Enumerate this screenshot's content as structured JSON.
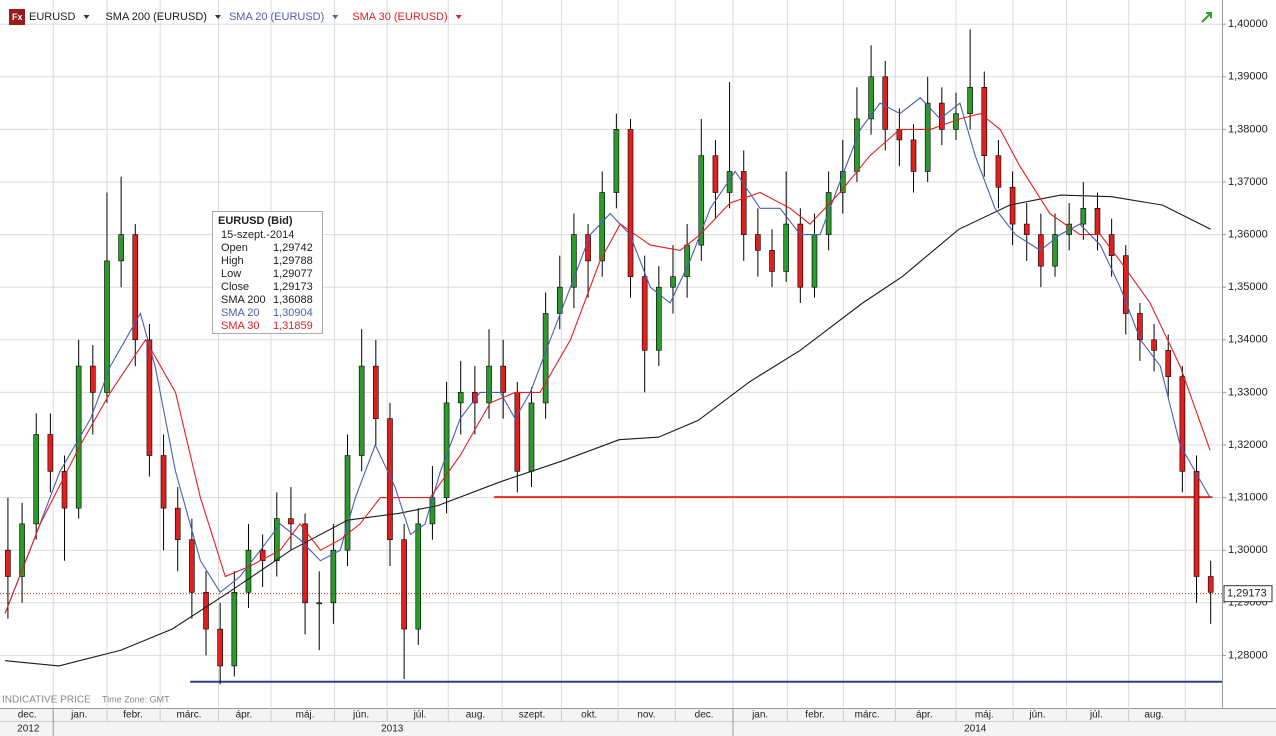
{
  "chart_data": {
    "type": "candlestick",
    "instrument": "EURUSD",
    "xlim": [
      0.06,
      21.65
    ],
    "ylim": [
      1.27,
      1.4046
    ],
    "yticks": [
      {
        "value": 1.28,
        "label": "1,28000"
      },
      {
        "value": 1.29,
        "label": "1,29000"
      },
      {
        "value": 1.3,
        "label": "1,30000"
      },
      {
        "value": 1.31,
        "label": "1,31000"
      },
      {
        "value": 1.32,
        "label": "1,32000"
      },
      {
        "value": 1.33,
        "label": "1,33000"
      },
      {
        "value": 1.34,
        "label": "1,34000"
      },
      {
        "value": 1.35,
        "label": "1,35000"
      },
      {
        "value": 1.36,
        "label": "1,36000"
      },
      {
        "value": 1.37,
        "label": "1,37000"
      },
      {
        "value": 1.38,
        "label": "1,38000"
      },
      {
        "value": 1.39,
        "label": "1,39000"
      },
      {
        "value": 1.4,
        "label": "1,40000"
      }
    ],
    "xticks": [
      1.0,
      1.95,
      2.89,
      3.92,
      4.85,
      5.97,
      6.9,
      7.98,
      8.93,
      9.98,
      10.98,
      11.99,
      13.01,
      13.97,
      14.96,
      15.88,
      16.95,
      17.96,
      18.9,
      20.0,
      21.0
    ],
    "grid": true,
    "month_labels": [
      {
        "value": 0.54,
        "label": "dec."
      },
      {
        "value": 1.46,
        "label": "jan."
      },
      {
        "value": 2.41,
        "label": "febr."
      },
      {
        "value": 3.4,
        "label": "márc."
      },
      {
        "value": 4.37,
        "label": "ápr."
      },
      {
        "value": 5.45,
        "label": "máj."
      },
      {
        "value": 6.44,
        "label": "jún."
      },
      {
        "value": 7.48,
        "label": "júl."
      },
      {
        "value": 8.46,
        "label": "aug."
      },
      {
        "value": 9.46,
        "label": "szept."
      },
      {
        "value": 10.47,
        "label": "okt."
      },
      {
        "value": 11.48,
        "label": "nov."
      },
      {
        "value": 12.5,
        "label": "dec."
      },
      {
        "value": 13.49,
        "label": "jan."
      },
      {
        "value": 14.46,
        "label": "febr."
      },
      {
        "value": 15.38,
        "label": "márc."
      },
      {
        "value": 16.39,
        "label": "ápr."
      },
      {
        "value": 17.45,
        "label": "máj."
      },
      {
        "value": 18.39,
        "label": "jún."
      },
      {
        "value": 19.43,
        "label": "júl."
      },
      {
        "value": 20.45,
        "label": "aug."
      }
    ],
    "year_labels": [
      {
        "value": 0.56,
        "label": "2012"
      },
      {
        "value": 6.99,
        "label": "2013"
      },
      {
        "value": 17.29,
        "label": "2014"
      }
    ],
    "year_breaks": [
      1.0,
      13.01
    ],
    "up_color": "#2c9a2c",
    "down_color": "#e02020",
    "x": [
      0.2,
      0.45,
      0.7,
      0.95,
      1.2,
      1.45,
      1.7,
      1.95,
      2.2,
      2.45,
      2.7,
      2.95,
      3.2,
      3.45,
      3.7,
      3.95,
      4.2,
      4.45,
      4.7,
      4.95,
      5.2,
      5.45,
      5.7,
      5.95,
      6.2,
      6.45,
      6.7,
      6.95,
      7.2,
      7.45,
      7.7,
      7.95,
      8.2,
      8.45,
      8.7,
      8.95,
      9.2,
      9.45,
      9.7,
      9.95,
      10.2,
      10.45,
      10.7,
      10.95,
      11.2,
      11.45,
      11.7,
      11.95,
      12.2,
      12.45,
      12.7,
      12.95,
      13.2,
      13.45,
      13.7,
      13.95,
      14.2,
      14.45,
      14.7,
      14.95,
      15.2,
      15.45,
      15.7,
      15.95,
      16.2,
      16.45,
      16.7,
      16.95,
      17.2,
      17.45,
      17.7,
      17.95,
      18.2,
      18.45,
      18.7,
      18.95,
      19.2,
      19.45,
      19.7,
      19.95,
      20.2,
      20.45,
      20.7,
      20.95,
      21.2,
      21.45
    ],
    "open": [
      1.3,
      1.295,
      1.305,
      1.322,
      1.315,
      1.308,
      1.335,
      1.33,
      1.355,
      1.36,
      1.34,
      1.318,
      1.308,
      1.302,
      1.292,
      1.285,
      1.278,
      1.292,
      1.3,
      1.298,
      1.306,
      1.305,
      1.29,
      1.29,
      1.3,
      1.318,
      1.335,
      1.325,
      1.302,
      1.285,
      1.305,
      1.31,
      1.328,
      1.33,
      1.328,
      1.335,
      1.33,
      1.315,
      1.328,
      1.345,
      1.35,
      1.36,
      1.355,
      1.368,
      1.38,
      1.352,
      1.338,
      1.35,
      1.352,
      1.358,
      1.375,
      1.368,
      1.372,
      1.36,
      1.357,
      1.353,
      1.362,
      1.35,
      1.36,
      1.368,
      1.372,
      1.382,
      1.39,
      1.38,
      1.378,
      1.372,
      1.385,
      1.38,
      1.383,
      1.388,
      1.375,
      1.369,
      1.362,
      1.36,
      1.354,
      1.36,
      1.362,
      1.365,
      1.36,
      1.356,
      1.345,
      1.34,
      1.338,
      1.333,
      1.315,
      1.295
    ],
    "high": [
      1.31,
      1.309,
      1.326,
      1.326,
      1.318,
      1.34,
      1.339,
      1.368,
      1.371,
      1.362,
      1.343,
      1.322,
      1.312,
      1.306,
      1.296,
      1.29,
      1.296,
      1.305,
      1.303,
      1.311,
      1.312,
      1.307,
      1.296,
      1.305,
      1.322,
      1.342,
      1.34,
      1.328,
      1.305,
      1.308,
      1.316,
      1.332,
      1.336,
      1.335,
      1.342,
      1.34,
      1.332,
      1.331,
      1.349,
      1.356,
      1.364,
      1.362,
      1.372,
      1.383,
      1.382,
      1.356,
      1.354,
      1.358,
      1.362,
      1.382,
      1.378,
      1.389,
      1.376,
      1.365,
      1.361,
      1.372,
      1.365,
      1.364,
      1.372,
      1.378,
      1.388,
      1.396,
      1.393,
      1.384,
      1.381,
      1.39,
      1.388,
      1.387,
      1.399,
      1.391,
      1.378,
      1.372,
      1.366,
      1.364,
      1.364,
      1.366,
      1.37,
      1.368,
      1.363,
      1.358,
      1.347,
      1.343,
      1.341,
      1.335,
      1.318,
      1.298
    ],
    "low": [
      1.287,
      1.29,
      1.302,
      1.311,
      1.298,
      1.306,
      1.322,
      1.328,
      1.35,
      1.335,
      1.314,
      1.3,
      1.296,
      1.287,
      1.28,
      1.2745,
      1.276,
      1.289,
      1.293,
      1.295,
      1.3,
      1.284,
      1.281,
      1.286,
      1.297,
      1.315,
      1.32,
      1.297,
      1.2755,
      1.282,
      1.302,
      1.307,
      1.322,
      1.322,
      1.325,
      1.325,
      1.311,
      1.312,
      1.325,
      1.342,
      1.346,
      1.348,
      1.352,
      1.365,
      1.348,
      1.33,
      1.335,
      1.345,
      1.348,
      1.355,
      1.363,
      1.365,
      1.355,
      1.352,
      1.35,
      1.351,
      1.347,
      1.348,
      1.357,
      1.364,
      1.37,
      1.379,
      1.376,
      1.373,
      1.368,
      1.37,
      1.377,
      1.378,
      1.38,
      1.371,
      1.365,
      1.358,
      1.355,
      1.35,
      1.352,
      1.357,
      1.359,
      1.357,
      1.352,
      1.341,
      1.336,
      1.334,
      1.329,
      1.311,
      1.29,
      1.286
    ],
    "close": [
      1.295,
      1.305,
      1.322,
      1.315,
      1.308,
      1.335,
      1.33,
      1.355,
      1.36,
      1.34,
      1.318,
      1.308,
      1.302,
      1.292,
      1.285,
      1.278,
      1.292,
      1.3,
      1.298,
      1.306,
      1.305,
      1.29,
      1.29,
      1.3,
      1.318,
      1.335,
      1.325,
      1.302,
      1.285,
      1.305,
      1.31,
      1.328,
      1.33,
      1.328,
      1.335,
      1.33,
      1.315,
      1.328,
      1.345,
      1.35,
      1.36,
      1.355,
      1.368,
      1.38,
      1.352,
      1.338,
      1.35,
      1.352,
      1.358,
      1.375,
      1.368,
      1.372,
      1.36,
      1.357,
      1.353,
      1.362,
      1.35,
      1.36,
      1.368,
      1.372,
      1.382,
      1.39,
      1.38,
      1.378,
      1.372,
      1.385,
      1.38,
      1.383,
      1.388,
      1.375,
      1.369,
      1.362,
      1.36,
      1.354,
      1.36,
      1.362,
      1.365,
      1.36,
      1.356,
      1.345,
      1.34,
      1.338,
      1.333,
      1.315,
      1.295,
      1.292
    ],
    "series": [
      {
        "name": "SMA 200 (EURUSD)",
        "color": "#1a1a1a",
        "x": [
          0.15,
          1.1,
          2.2,
          3.1,
          4.1,
          5.2,
          6.2,
          7.1,
          7.8,
          8.9,
          10.0,
          11.0,
          11.7,
          12.4,
          13.3,
          14.2,
          15.3,
          16.0,
          17.0,
          17.9,
          18.8,
          19.7,
          20.6,
          21.45
        ],
        "values": [
          1.279,
          1.278,
          1.281,
          1.285,
          1.292,
          1.3,
          1.3057,
          1.307,
          1.3085,
          1.313,
          1.317,
          1.321,
          1.3215,
          1.3247,
          1.332,
          1.338,
          1.347,
          1.352,
          1.361,
          1.3656,
          1.3675,
          1.3672,
          1.3656,
          1.361
        ]
      },
      {
        "name": "SMA 20 (EURUSD)",
        "color": "#4a5fb0",
        "x": [
          0.15,
          0.59,
          1.12,
          1.66,
          2.01,
          2.54,
          2.8,
          3.16,
          3.6,
          3.95,
          4.3,
          4.66,
          5.01,
          5.36,
          5.72,
          6.07,
          6.34,
          6.69,
          7.04,
          7.31,
          7.57,
          7.84,
          8.19,
          8.54,
          8.9,
          9.16,
          9.43,
          9.78,
          10.14,
          10.49,
          10.84,
          11.19,
          11.55,
          11.9,
          12.25,
          12.61,
          13.05,
          13.49,
          13.84,
          14.2,
          14.55,
          14.9,
          15.26,
          15.61,
          15.96,
          16.32,
          16.67,
          17.02,
          17.29,
          17.64,
          18.0,
          18.44,
          18.79,
          19.14,
          19.5,
          19.85,
          20.21,
          20.56,
          20.91,
          21.44
        ],
        "values": [
          1.288,
          1.3,
          1.315,
          1.325,
          1.335,
          1.345,
          1.335,
          1.315,
          1.298,
          1.292,
          1.295,
          1.3,
          1.305,
          1.302,
          1.298,
          1.3,
          1.31,
          1.32,
          1.312,
          1.303,
          1.305,
          1.315,
          1.325,
          1.33,
          1.33,
          1.325,
          1.33,
          1.34,
          1.35,
          1.36,
          1.364,
          1.36,
          1.35,
          1.347,
          1.355,
          1.365,
          1.372,
          1.365,
          1.365,
          1.36,
          1.36,
          1.37,
          1.38,
          1.385,
          1.383,
          1.386,
          1.382,
          1.385,
          1.375,
          1.365,
          1.36,
          1.357,
          1.36,
          1.362,
          1.358,
          1.35,
          1.34,
          1.335,
          1.32,
          1.31
        ]
      },
      {
        "name": "SMA 30 (EURUSD)",
        "color": "#e02020",
        "x": [
          0.15,
          0.77,
          1.48,
          2.01,
          2.63,
          3.16,
          3.6,
          4.04,
          4.48,
          5.01,
          5.36,
          5.72,
          6.07,
          6.42,
          6.78,
          7.13,
          7.66,
          8.19,
          8.72,
          9.16,
          9.6,
          10.14,
          10.66,
          11.02,
          11.55,
          12.08,
          12.43,
          12.96,
          13.49,
          14.02,
          14.37,
          14.9,
          15.43,
          15.96,
          16.5,
          17.02,
          17.38,
          17.73,
          18.08,
          18.61,
          19.14,
          19.5,
          19.85,
          20.38,
          20.91,
          21.44
        ],
        "values": [
          1.288,
          1.305,
          1.32,
          1.33,
          1.34,
          1.33,
          1.31,
          1.295,
          1.297,
          1.3,
          1.305,
          1.3,
          1.302,
          1.305,
          1.31,
          1.31,
          1.31,
          1.318,
          1.328,
          1.33,
          1.33,
          1.34,
          1.355,
          1.362,
          1.358,
          1.357,
          1.36,
          1.366,
          1.368,
          1.365,
          1.362,
          1.368,
          1.375,
          1.38,
          1.38,
          1.382,
          1.383,
          1.38,
          1.373,
          1.364,
          1.36,
          1.36,
          1.355,
          1.347,
          1.335,
          1.319
        ]
      }
    ],
    "hlines": [
      {
        "value": 1.3101,
        "x": [
          8.79,
          21.48
        ],
        "color": "#e8281e"
      },
      {
        "value": 1.275,
        "x": [
          3.42,
          21.65
        ],
        "color": "#2b3b9a"
      }
    ],
    "last_price": {
      "value": 1.29173,
      "label": "1,29173",
      "color": "#c00000"
    },
    "info_box": {
      "title": "EURUSD (Bid)",
      "date": "15-szept.-2014",
      "rows": [
        {
          "label": "Open",
          "value": "1,29742",
          "color": "#222222"
        },
        {
          "label": "High",
          "value": "1,29788",
          "color": "#222222"
        },
        {
          "label": "Low",
          "value": "1,29077",
          "color": "#222222"
        },
        {
          "label": "Close",
          "value": "1,29173",
          "color": "#222222"
        },
        {
          "label": "SMA 200",
          "value": "1,36088",
          "color": "#222222"
        },
        {
          "label": "SMA 20",
          "value": "1,30904",
          "color": "#4a5fb0"
        },
        {
          "label": "SMA 30",
          "value": "1,31859",
          "color": "#e02020"
        }
      ]
    },
    "footer": {
      "price_note": "INDICATIVE PRICE",
      "time_zone": "Time Zone: GMT"
    }
  }
}
